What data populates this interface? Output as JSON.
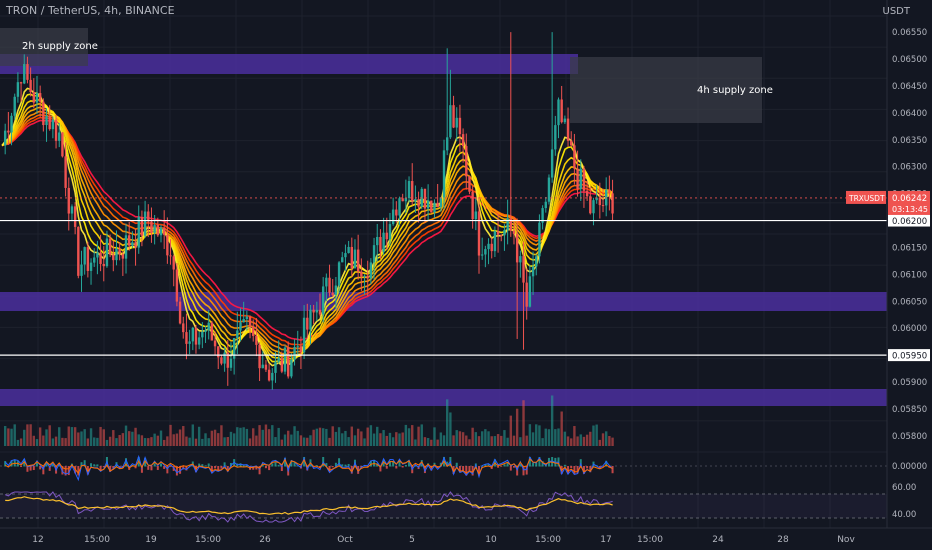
{
  "header": {
    "title": "TRON / TetherUS, 4h, BINANCE"
  },
  "axis": {
    "currency": "USDT",
    "price_ticks": [
      "0.06550",
      "0.06500",
      "0.06450",
      "0.06400",
      "0.06350",
      "0.06300",
      "0.06250",
      "0.06150",
      "0.06100",
      "0.06050",
      "0.06000",
      "0.05900",
      "0.05850",
      "0.05800"
    ],
    "macd_ticks": [
      "0.00000"
    ],
    "rsi_ticks": [
      "60.00",
      "40.00"
    ],
    "date_ticks": [
      "12",
      "15:00",
      "19",
      "15:00",
      "26",
      "Oct",
      "5",
      "10",
      "15:00",
      "17",
      "15:00",
      "24",
      "28",
      "Nov"
    ]
  },
  "price_tag": {
    "symbol": "TRXUSDT",
    "price": "0.06242",
    "countdown": "03:13:45"
  },
  "levels": [
    "0.06200",
    "0.05950"
  ],
  "zones": {
    "zone_2h": "2h supply zone",
    "zone_4h": "4h supply zone"
  },
  "colors": {
    "background": "#131722",
    "up": "#26a69a",
    "down": "#ef5350",
    "zone": "#4b2f9e",
    "ribbon_outer": "#ff1744",
    "ribbon_inner": "#ffeb3b"
  },
  "chart_data": {
    "type": "candlestick",
    "timeframe": "4h",
    "y_range": [
      0.0577,
      0.0658
    ],
    "supply_zones": [
      {
        "label": "2h supply zone",
        "low": 0.06485,
        "high": 0.0651
      },
      {
        "label": "",
        "low": 0.0604,
        "high": 0.06065
      },
      {
        "label": "",
        "low": 0.05875,
        "high": 0.05895
      },
      {
        "label": "4h supply zone",
        "low": 0.0639,
        "high": 0.0651
      }
    ],
    "horizontal_levels": [
      0.062,
      0.0595
    ],
    "close_path": [
      [
        0,
        0.0634
      ],
      [
        6,
        0.0648
      ],
      [
        11,
        0.0642
      ],
      [
        18,
        0.0636
      ],
      [
        24,
        0.0612
      ],
      [
        30,
        0.0613
      ],
      [
        38,
        0.0615
      ],
      [
        46,
        0.062
      ],
      [
        53,
        0.0615
      ],
      [
        58,
        0.0596
      ],
      [
        64,
        0.06
      ],
      [
        70,
        0.0594
      ],
      [
        77,
        0.06
      ],
      [
        84,
        0.0592
      ],
      [
        90,
        0.0594
      ],
      [
        96,
        0.06
      ],
      [
        101,
        0.0606
      ],
      [
        108,
        0.0613
      ],
      [
        116,
        0.0612
      ],
      [
        125,
        0.0625
      ],
      [
        130,
        0.0626
      ],
      [
        137,
        0.0623
      ],
      [
        141,
        0.064
      ],
      [
        145,
        0.0633
      ],
      [
        150,
        0.0616
      ],
      [
        157,
        0.0618
      ],
      [
        161,
        0.0618
      ],
      [
        165,
        0.0604
      ],
      [
        170,
        0.062
      ],
      [
        175,
        0.064
      ],
      [
        180,
        0.063
      ],
      [
        185,
        0.0622
      ],
      [
        192,
        0.0624
      ]
    ],
    "last_price": 0.06242
  }
}
